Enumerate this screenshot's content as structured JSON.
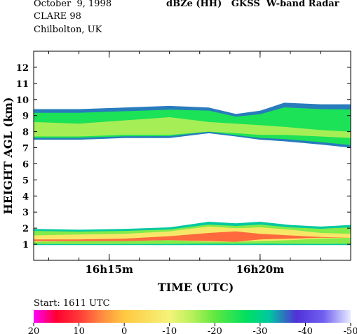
{
  "header": {
    "date": "October  9, 1998",
    "campaign": "CLARE 98",
    "location": "Chilbolton, UK",
    "title": "dBZe (HH)   GKSS  W-band Radar"
  },
  "colorbar": {
    "start_label": "Start: 1611 UTC",
    "tick_labels": [
      "20",
      "10",
      "0",
      "-10",
      "-20",
      "-30",
      "-40",
      "-50"
    ],
    "stops": [
      {
        "value": 20,
        "color": "#ff00ff"
      },
      {
        "value": 15,
        "color": "#ff0030"
      },
      {
        "value": 10,
        "color": "#ff3838"
      },
      {
        "value": 5,
        "color": "#ff8a40"
      },
      {
        "value": 0,
        "color": "#ffc840"
      },
      {
        "value": -10,
        "color": "#f4f47a"
      },
      {
        "value": -15,
        "color": "#b8f05a"
      },
      {
        "value": -20,
        "color": "#60e840"
      },
      {
        "value": -27,
        "color": "#00e060"
      },
      {
        "value": -32,
        "color": "#00c8a0"
      },
      {
        "value": -38,
        "color": "#5030d8"
      },
      {
        "value": -44,
        "color": "#7060f0"
      },
      {
        "value": -50,
        "color": "#e8ecff"
      }
    ]
  },
  "chart_data": {
    "type": "heatmap",
    "title": "dBZe (HH)   GKSS  W-band Radar",
    "xlabel": "TIME (UTC)",
    "ylabel": "HEIGHT AGL (km)",
    "x_tick_labels": [
      "16h15m",
      "16h20m"
    ],
    "x_ticks_minutes": [
      15,
      20
    ],
    "xlim_minutes": [
      12.5,
      23.0
    ],
    "ylim": [
      0,
      13
    ],
    "y_ticks": [
      1,
      2,
      3,
      4,
      5,
      6,
      7,
      8,
      9,
      10,
      11,
      12
    ],
    "colorbar_range": [
      20,
      -50
    ],
    "units": "dBZe",
    "layers": [
      {
        "name": "upper cloud layer",
        "x": [
          12.5,
          14.0,
          15.5,
          17.0,
          18.3,
          19.2,
          20.0,
          20.8,
          22.0,
          23.0
        ],
        "top_km": [
          9.4,
          9.4,
          9.5,
          9.6,
          9.5,
          9.1,
          9.3,
          9.8,
          9.7,
          9.7
        ],
        "bottom_km": [
          7.5,
          7.5,
          7.6,
          7.6,
          7.9,
          7.7,
          7.5,
          7.4,
          7.2,
          7.0
        ],
        "core_top_km": [
          8.6,
          8.5,
          8.7,
          8.9,
          8.6,
          8.5,
          8.4,
          8.3,
          8.1,
          8.0
        ],
        "core_bottom_km": [
          7.7,
          7.7,
          7.8,
          7.8,
          8.0,
          7.9,
          7.8,
          7.8,
          7.7,
          7.6
        ],
        "edge_dbz": -35,
        "body_dbz": -25,
        "core_dbz": -16
      },
      {
        "name": "lower cloud layer",
        "x": [
          12.5,
          14.0,
          15.5,
          17.0,
          18.3,
          19.2,
          20.0,
          21.0,
          22.0,
          23.0
        ],
        "top_km": [
          1.95,
          1.9,
          1.95,
          2.05,
          2.4,
          2.3,
          2.4,
          2.2,
          2.1,
          2.2
        ],
        "bottom_km": [
          0.95,
          0.95,
          0.95,
          0.95,
          0.95,
          0.95,
          0.95,
          0.95,
          0.95,
          0.95
        ],
        "core_top_km": [
          1.55,
          1.6,
          1.65,
          1.8,
          2.1,
          2.0,
          2.05,
          1.9,
          1.7,
          1.65
        ],
        "core_bottom_km": [
          1.15,
          1.2,
          1.2,
          1.25,
          1.15,
          1.15,
          1.2,
          1.25,
          1.35,
          1.4
        ],
        "hot_top_km": [
          1.3,
          1.3,
          1.35,
          1.5,
          1.7,
          1.8,
          1.65,
          1.55,
          1.45,
          1.4
        ],
        "hot_bottom_km": [
          1.2,
          1.2,
          1.2,
          1.25,
          1.2,
          1.15,
          1.3,
          1.35,
          1.4,
          1.4
        ],
        "edge_dbz": -32,
        "body_dbz": -18,
        "core_dbz": -7,
        "hot_dbz": 7
      }
    ]
  }
}
